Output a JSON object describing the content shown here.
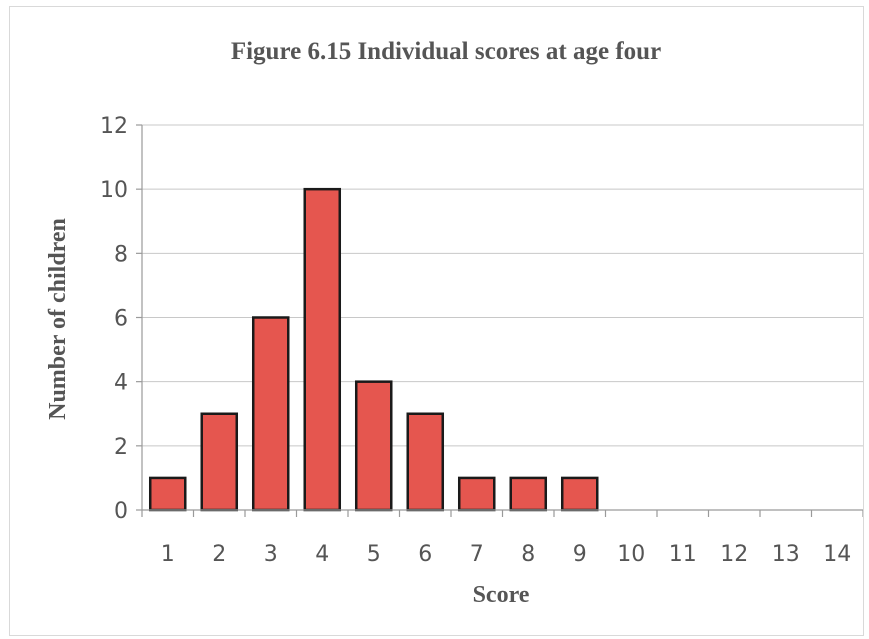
{
  "chart_data": {
    "type": "bar",
    "title": "Figure 6.15 Individual scores at age four",
    "xlabel": "Score",
    "ylabel": "Number of children",
    "categories": [
      "1",
      "2",
      "3",
      "4",
      "5",
      "6",
      "7",
      "8",
      "9",
      "10",
      "11",
      "12",
      "13",
      "14"
    ],
    "values": [
      1,
      3,
      6,
      10,
      4,
      3,
      1,
      1,
      1,
      0,
      0,
      0,
      0,
      0
    ],
    "ylim": [
      0,
      12
    ],
    "yticks": [
      "0",
      "2",
      "4",
      "6",
      "8",
      "10",
      "12"
    ],
    "grid": true,
    "legend": "none",
    "bar_color": "#e5564f",
    "bar_edge_color": "#1a1a1a"
  }
}
